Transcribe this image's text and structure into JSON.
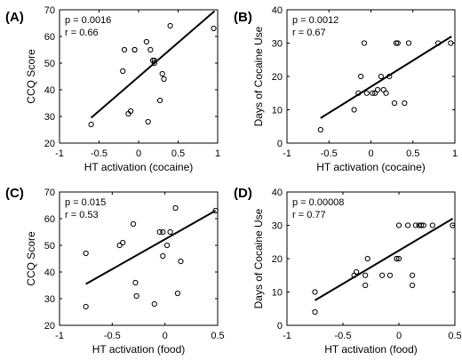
{
  "chart_data": [
    {
      "type": "scatter",
      "panel_label": "(A)",
      "stats": {
        "p": "p = 0.0016",
        "r": "r = 0.66"
      },
      "xlabel": "HT activation (cocaine)",
      "ylabel": "CCQ Score",
      "xlim": [
        -1,
        1
      ],
      "ylim": [
        20,
        70
      ],
      "xticks": [
        "-1",
        "-0.5",
        "0",
        "0.5",
        "1"
      ],
      "yticks": [
        "20",
        "30",
        "40",
        "50",
        "60",
        "70"
      ],
      "x": [
        -0.6,
        -0.2,
        -0.18,
        -0.13,
        -0.1,
        -0.05,
        -0.05,
        0.1,
        0.12,
        0.15,
        0.18,
        0.2,
        0.2,
        0.27,
        0.3,
        0.32,
        0.4,
        0.95
      ],
      "y": [
        27,
        47,
        55,
        31,
        32,
        55,
        55,
        58,
        28,
        55,
        51,
        51,
        50,
        36,
        46,
        44,
        64,
        63
      ],
      "fit": {
        "x": [
          -0.6,
          0.96
        ],
        "y": [
          29.5,
          69.5
        ]
      }
    },
    {
      "type": "scatter",
      "panel_label": "(B)",
      "stats": {
        "p": "p = 0.0012",
        "r": "r = 0.67"
      },
      "xlabel": "HT activation (cocaine)",
      "ylabel": "Days of Cocaine Use",
      "xlim": [
        -1,
        1
      ],
      "ylim": [
        0,
        40
      ],
      "xticks": [
        "-1",
        "-0.5",
        "0",
        "0.5",
        "1"
      ],
      "yticks": [
        "0",
        "10",
        "20",
        "30",
        "40"
      ],
      "x": [
        -0.6,
        -0.2,
        -0.15,
        -0.12,
        -0.05,
        -0.08,
        0.02,
        0.05,
        0.08,
        0.12,
        0.15,
        0.18,
        0.22,
        0.28,
        0.3,
        0.32,
        0.4,
        0.45,
        0.8,
        0.95
      ],
      "y": [
        4,
        10,
        15,
        20,
        15,
        30,
        15,
        15,
        16,
        20,
        16,
        15,
        20,
        12,
        30,
        30,
        12,
        30,
        30,
        30
      ],
      "fit": {
        "x": [
          -0.6,
          0.96
        ],
        "y": [
          7.5,
          32
        ]
      }
    },
    {
      "type": "scatter",
      "panel_label": "(C)",
      "stats": {
        "p": "p = 0.015",
        "r": "r = 0.53"
      },
      "xlabel": "HT activation (food)",
      "ylabel": "CCQ Score",
      "xlim": [
        -1,
        0.5
      ],
      "ylim": [
        20,
        70
      ],
      "xticks": [
        "-1",
        "-0.5",
        "0",
        "0.5"
      ],
      "yticks": [
        "20",
        "30",
        "40",
        "50",
        "60",
        "70"
      ],
      "x": [
        -0.75,
        -0.75,
        -0.43,
        -0.4,
        -0.3,
        -0.28,
        -0.27,
        -0.1,
        -0.05,
        -0.02,
        -0.02,
        0.02,
        0.05,
        0.1,
        0.12,
        0.15,
        0.48
      ],
      "y": [
        47,
        27,
        50,
        51,
        58,
        36,
        31,
        28,
        55,
        55,
        46,
        50,
        55,
        64,
        32,
        44,
        63
      ],
      "fit": {
        "x": [
          -0.75,
          0.48
        ],
        "y": [
          35.5,
          63
        ]
      }
    },
    {
      "type": "scatter",
      "panel_label": "(D)",
      "stats": {
        "p": "p = 0.00008",
        "r": "r = 0.77"
      },
      "xlabel": "HT activation (food)",
      "ylabel": "Days of Cocaine Use",
      "xlim": [
        -1,
        0.5
      ],
      "ylim": [
        0,
        40
      ],
      "xticks": [
        "-1",
        "-0.5",
        "0",
        "0.5"
      ],
      "yticks": [
        "0",
        "10",
        "20",
        "30",
        "40"
      ],
      "x": [
        -0.75,
        -0.75,
        -0.4,
        -0.38,
        -0.3,
        -0.3,
        -0.28,
        -0.15,
        -0.08,
        -0.02,
        -0.02,
        0,
        0,
        0.08,
        0.12,
        0.12,
        0.15,
        0.18,
        0.2,
        0.22,
        0.3,
        0.48
      ],
      "y": [
        10,
        4,
        15,
        16,
        15,
        12,
        20,
        15,
        15,
        20,
        20,
        20,
        30,
        30,
        15,
        12,
        30,
        30,
        30,
        30,
        30,
        30
      ],
      "fit": {
        "x": [
          -0.75,
          0.48
        ],
        "y": [
          7.5,
          32
        ]
      }
    }
  ]
}
